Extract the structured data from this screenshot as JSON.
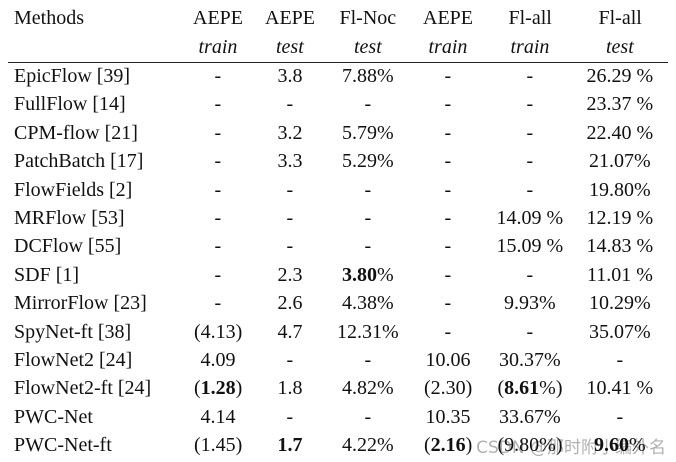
{
  "table": {
    "header": [
      [
        "Methods",
        "AEPE",
        "AEPE",
        "Fl-Noc",
        "AEPE",
        "Fl-all",
        "Fl-all"
      ],
      [
        "",
        "train",
        "test",
        "test",
        "train",
        "train",
        "test"
      ]
    ],
    "rows": [
      [
        "EpicFlow [39]",
        "-",
        "3.8",
        "7.88%",
        "-",
        "-",
        "26.29 %"
      ],
      [
        "FullFlow [14]",
        "-",
        "-",
        "-",
        "-",
        "-",
        "23.37 %"
      ],
      [
        "CPM-flow [21]",
        "-",
        "3.2",
        "5.79%",
        "-",
        "-",
        "22.40 %"
      ],
      [
        "PatchBatch [17]",
        "-",
        "3.3",
        "5.29%",
        "-",
        "-",
        "21.07%"
      ],
      [
        "FlowFields [2]",
        "-",
        "-",
        "-",
        "-",
        "-",
        "19.80%"
      ],
      [
        "MRFlow [53]",
        "-",
        "-",
        "-",
        "-",
        "14.09 %",
        "12.19 %"
      ],
      [
        "DCFlow [55]",
        "-",
        "-",
        "-",
        "-",
        "15.09 %",
        "14.83 %"
      ],
      [
        "SDF [1]",
        "-",
        "2.3",
        {
          "parts": [
            {
              "text": "3.80",
              "bold": true
            },
            {
              "text": "%"
            }
          ]
        },
        "-",
        "-",
        "11.01 %"
      ],
      [
        "MirrorFlow [23]",
        "-",
        "2.6",
        "4.38%",
        "-",
        "9.93%",
        "10.29%"
      ],
      [
        "SpyNet-ft [38]",
        "(4.13)",
        "4.7",
        "12.31%",
        "-",
        "-",
        "35.07%"
      ],
      [
        "FlowNet2 [24]",
        "4.09",
        "-",
        "-",
        "10.06",
        "30.37%",
        "-"
      ],
      [
        "FlowNet2-ft [24]",
        {
          "parts": [
            {
              "text": "("
            },
            {
              "text": "1.28",
              "bold": true
            },
            {
              "text": ")"
            }
          ]
        },
        "1.8",
        "4.82%",
        "(2.30)",
        {
          "parts": [
            {
              "text": "("
            },
            {
              "text": "8.61",
              "bold": true
            },
            {
              "text": "%)"
            }
          ]
        },
        "10.41 %"
      ],
      [
        "PWC-Net",
        "4.14",
        "-",
        "-",
        "10.35",
        "33.67%",
        "-"
      ],
      [
        "PWC-Net-ft",
        "(1.45)",
        {
          "parts": [
            {
              "text": "1.7",
              "bold": true
            }
          ]
        },
        "4.22%",
        {
          "parts": [
            {
              "text": "("
            },
            {
              "text": "2.16",
              "bold": true
            },
            {
              "text": ")"
            }
          ]
        },
        "(9.80%)",
        {
          "parts": [
            {
              "text": "9.60",
              "bold": true
            },
            {
              "text": "%"
            }
          ]
        }
      ]
    ]
  },
  "watermark": "CSDN @那时附小编外名"
}
